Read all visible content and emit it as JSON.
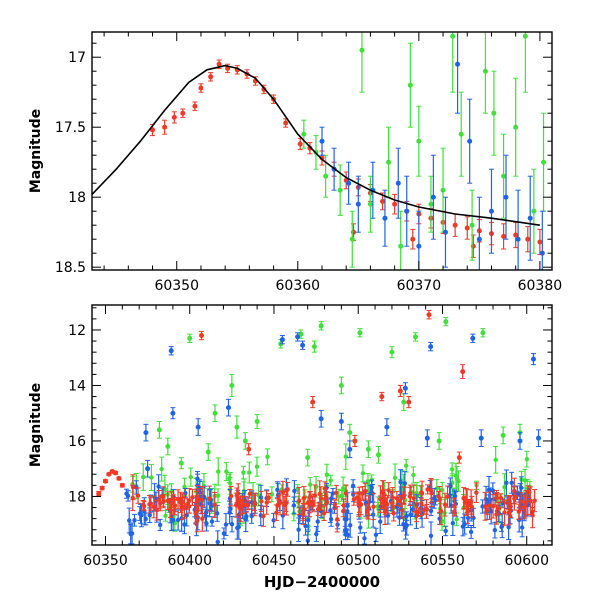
{
  "colors": {
    "red": "#f03a26",
    "green": "#3fe03a",
    "blue": "#1f63e6",
    "model": "#000000",
    "axes": "#000000"
  },
  "chart_data": [
    {
      "type": "scatter",
      "ylabel": "Magnitude",
      "xlabel": "",
      "xlim": [
        60343,
        60381
      ],
      "ylim": [
        18.52,
        16.82
      ],
      "y_inverted": true,
      "grid": false,
      "xticks": [
        60350,
        60360,
        60370,
        60380
      ],
      "yticks": [
        17,
        17.5,
        18,
        18.5
      ],
      "model_curve": {
        "description_type": "line",
        "points": [
          [
            60343,
            17.98
          ],
          [
            60345,
            17.8
          ],
          [
            60347,
            17.6
          ],
          [
            60349,
            17.38
          ],
          [
            60351,
            17.18
          ],
          [
            60352.5,
            17.09
          ],
          [
            60354,
            17.06
          ],
          [
            60355,
            17.08
          ],
          [
            60356.5,
            17.15
          ],
          [
            60358,
            17.3
          ],
          [
            60360,
            17.55
          ],
          [
            60362,
            17.73
          ],
          [
            60364,
            17.86
          ],
          [
            60366,
            17.95
          ],
          [
            60368,
            18.02
          ],
          [
            60370,
            18.07
          ],
          [
            60373,
            18.12
          ],
          [
            60376,
            18.15
          ],
          [
            60380,
            18.2
          ]
        ]
      },
      "series": [
        {
          "color": "red",
          "points": [
            [
              60348,
              17.52,
              0.04
            ],
            [
              60349,
              17.5,
              0.05
            ],
            [
              60349.8,
              17.43,
              0.04
            ],
            [
              60350.5,
              17.4,
              0.03
            ],
            [
              60351.5,
              17.35,
              0.03
            ],
            [
              60352,
              17.22,
              0.03
            ],
            [
              60352.8,
              17.14,
              0.03
            ],
            [
              60353.5,
              17.05,
              0.03
            ],
            [
              60354.2,
              17.08,
              0.03
            ],
            [
              60355,
              17.09,
              0.03
            ],
            [
              60355.8,
              17.12,
              0.03
            ],
            [
              60356.5,
              17.17,
              0.03
            ],
            [
              60357.2,
              17.23,
              0.03
            ],
            [
              60358,
              17.3,
              0.03
            ],
            [
              60359,
              17.47,
              0.03
            ],
            [
              60360.2,
              17.62,
              0.04
            ],
            [
              60361,
              17.65,
              0.04
            ],
            [
              60362,
              17.72,
              0.05
            ],
            [
              60363,
              17.8,
              0.05
            ],
            [
              60364,
              17.88,
              0.06
            ],
            [
              60365,
              17.93,
              0.06
            ],
            [
              60366,
              17.97,
              0.06
            ],
            [
              60367,
              18.03,
              0.06
            ],
            [
              60368,
              18.05,
              0.07
            ],
            [
              60369,
              18.1,
              0.07
            ],
            [
              60370,
              18.12,
              0.07
            ],
            [
              60371,
              18.15,
              0.07
            ],
            [
              60372,
              18.18,
              0.08
            ],
            [
              60373,
              18.2,
              0.08
            ],
            [
              60374,
              18.22,
              0.08
            ],
            [
              60375,
              18.24,
              0.08
            ],
            [
              60376,
              18.26,
              0.08
            ],
            [
              60377,
              18.28,
              0.09
            ],
            [
              60378,
              18.27,
              0.09
            ],
            [
              60379,
              18.3,
              0.09
            ],
            [
              60380,
              18.32,
              0.09
            ],
            [
              60364.6,
              18.25,
              0.06
            ],
            [
              60369.5,
              18.3,
              0.07
            ],
            [
              60374.5,
              18.35,
              0.08
            ]
          ]
        },
        {
          "color": "green",
          "points": [
            [
              60360.5,
              17.55,
              0.1
            ],
            [
              60361.5,
              17.68,
              0.12
            ],
            [
              60362.3,
              17.85,
              0.15
            ],
            [
              60363.5,
              17.95,
              0.18
            ],
            [
              60364.5,
              18.3,
              0.2
            ],
            [
              60365.3,
              16.95,
              0.3
            ],
            [
              60366,
              18.05,
              0.2
            ],
            [
              60367.5,
              17.75,
              0.25
            ],
            [
              60368.5,
              18.35,
              0.25
            ],
            [
              60369.3,
              17.2,
              0.3
            ],
            [
              60370,
              17.6,
              0.25
            ],
            [
              60371,
              18.05,
              0.2
            ],
            [
              60372,
              17.95,
              0.3
            ],
            [
              60372.8,
              16.85,
              0.4
            ],
            [
              60373.5,
              17.55,
              0.3
            ],
            [
              60374.4,
              18.2,
              0.25
            ],
            [
              60375.5,
              17.1,
              0.3
            ],
            [
              60376.2,
              17.4,
              0.3
            ],
            [
              60377,
              17.85,
              0.3
            ],
            [
              60378,
              17.5,
              0.35
            ],
            [
              60378.8,
              16.85,
              0.4
            ],
            [
              60379.5,
              18.1,
              0.3
            ],
            [
              60380.3,
              17.75,
              0.35
            ]
          ]
        },
        {
          "color": "blue",
          "points": [
            [
              60362,
              17.6,
              0.1
            ],
            [
              60363,
              17.8,
              0.15
            ],
            [
              60364.2,
              17.9,
              0.15
            ],
            [
              60365,
              18.05,
              0.2
            ],
            [
              60366.2,
              17.95,
              0.2
            ],
            [
              60367.2,
              18.15,
              0.2
            ],
            [
              60368.3,
              17.9,
              0.25
            ],
            [
              60369,
              18.1,
              0.25
            ],
            [
              60370,
              18.35,
              0.25
            ],
            [
              60371.2,
              18.0,
              0.3
            ],
            [
              60372.2,
              18.25,
              0.25
            ],
            [
              60373.2,
              17.05,
              0.35
            ],
            [
              60374.2,
              17.6,
              0.3
            ],
            [
              60375,
              18.3,
              0.3
            ],
            [
              60376,
              18.1,
              0.3
            ],
            [
              60377.2,
              18.0,
              0.3
            ],
            [
              60378.2,
              18.3,
              0.35
            ],
            [
              60379.2,
              18.15,
              0.3
            ],
            [
              60380.2,
              18.4,
              0.3
            ]
          ]
        }
      ]
    },
    {
      "type": "scatter",
      "ylabel": "Magnitude",
      "xlabel": "HJD−2400000",
      "xlim": [
        60342,
        60615
      ],
      "ylim": [
        19.75,
        11.1
      ],
      "y_inverted": true,
      "grid": false,
      "xticks": [
        60350,
        60400,
        60450,
        60500,
        60550,
        60600
      ],
      "yticks": [
        12,
        14,
        16,
        18
      ],
      "band_summary": {
        "x_start": 60362,
        "x_end": 60606,
        "red": {
          "center": 18.2,
          "spread": 0.25,
          "count": 180
        },
        "blue": {
          "center": 18.45,
          "spread": 0.45,
          "count": 200
        },
        "green": {
          "center": 17.9,
          "spread": 0.55,
          "count": 110
        }
      },
      "series": [
        {
          "color": "red",
          "points": [
            [
              60346,
              17.9,
              0.08
            ],
            [
              60348,
              17.7,
              0.06
            ],
            [
              60350,
              17.45,
              0.05
            ],
            [
              60352,
              17.2,
              0.04
            ],
            [
              60354,
              17.1,
              0.04
            ],
            [
              60356,
              17.15,
              0.05
            ],
            [
              60358,
              17.35,
              0.05
            ],
            [
              60360,
              17.6,
              0.06
            ],
            [
              60407,
              12.2,
              0.15
            ],
            [
              60473,
              14.6,
              0.2
            ],
            [
              60514,
              14.4,
              0.15
            ],
            [
              60525,
              14.2,
              0.2
            ],
            [
              60530,
              14.6,
              0.2
            ],
            [
              60542,
              11.45,
              0.15
            ],
            [
              60562,
              13.5,
              0.25
            ],
            [
              60435,
              16.3,
              0.2
            ],
            [
              60498,
              16.0,
              0.2
            ],
            [
              60560,
              16.6,
              0.2
            ]
          ]
        },
        {
          "color": "green",
          "points": [
            [
              60400,
              12.3,
              0.15
            ],
            [
              60395,
              16.8,
              0.2
            ],
            [
              60415,
              15.0,
              0.3
            ],
            [
              60425,
              14.0,
              0.4
            ],
            [
              60428,
              15.5,
              0.4
            ],
            [
              60433,
              16.0,
              0.3
            ],
            [
              60440,
              15.3,
              0.25
            ],
            [
              60454,
              12.5,
              0.15
            ],
            [
              60466,
              12.15,
              0.15
            ],
            [
              60474,
              12.6,
              0.2
            ],
            [
              60478,
              11.85,
              0.15
            ],
            [
              60490,
              14.0,
              0.3
            ],
            [
              60495,
              15.7,
              0.3
            ],
            [
              60501,
              12.1,
              0.15
            ],
            [
              60506,
              16.3,
              0.3
            ],
            [
              60520,
              12.8,
              0.2
            ],
            [
              60527,
              14.6,
              0.3
            ],
            [
              60534,
              12.25,
              0.15
            ],
            [
              60552,
              11.7,
              0.15
            ],
            [
              60574,
              12.1,
              0.15
            ],
            [
              60586,
              15.8,
              0.3
            ],
            [
              60596,
              15.7,
              0.3
            ],
            [
              60512,
              16.5,
              0.3
            ],
            [
              60470,
              16.6,
              0.3
            ],
            [
              60548,
              16.0,
              0.3
            ],
            [
              60382,
              15.6,
              0.3
            ],
            [
              60387,
              16.2,
              0.3
            ],
            [
              60411,
              16.4,
              0.3
            ]
          ]
        },
        {
          "color": "blue",
          "points": [
            [
              60389,
              12.75,
              0.15
            ],
            [
              60390,
              15.0,
              0.2
            ],
            [
              60374,
              15.7,
              0.3
            ],
            [
              60375,
              17.0,
              0.3
            ],
            [
              60405,
              15.5,
              0.3
            ],
            [
              60423,
              14.8,
              0.3
            ],
            [
              60455,
              12.35,
              0.15
            ],
            [
              60464,
              12.25,
              0.15
            ],
            [
              60467,
              12.55,
              0.15
            ],
            [
              60478,
              15.2,
              0.3
            ],
            [
              60490,
              15.3,
              0.3
            ],
            [
              60517,
              15.5,
              0.3
            ],
            [
              60528,
              14.1,
              0.2
            ],
            [
              60543,
              12.6,
              0.15
            ],
            [
              60568,
              12.3,
              0.15
            ],
            [
              60604,
              13.05,
              0.2
            ],
            [
              60607,
              15.9,
              0.3
            ],
            [
              60495,
              16.3,
              0.3
            ],
            [
              60541,
              15.9,
              0.3
            ],
            [
              60573,
              15.9,
              0.3
            ],
            [
              60596,
              16.0,
              0.3
            ]
          ]
        }
      ]
    }
  ]
}
